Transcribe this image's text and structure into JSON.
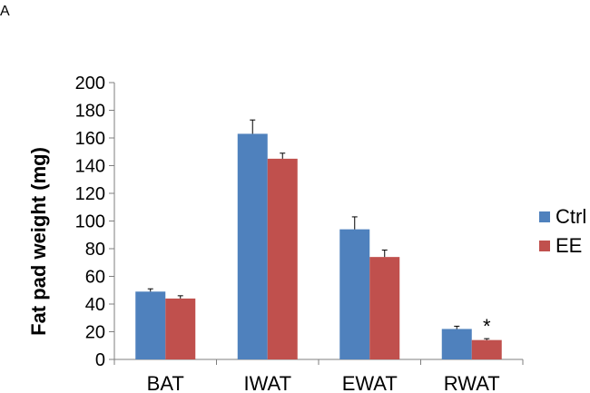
{
  "panel_label": "A",
  "chart_data": {
    "type": "bar",
    "categories": [
      "BAT",
      "IWAT",
      "EWAT",
      "RWAT"
    ],
    "series": [
      {
        "name": "Ctrl",
        "color": "#4f81bd",
        "values": [
          49,
          163,
          94,
          22
        ],
        "errors": [
          2,
          10,
          9,
          2
        ]
      },
      {
        "name": "EE",
        "color": "#c0504d",
        "values": [
          44,
          145,
          74,
          14
        ],
        "errors": [
          2,
          4,
          5,
          1
        ]
      }
    ],
    "title": "",
    "xlabel": "",
    "ylabel": "Fat pad weight (mg)",
    "ylim": [
      0,
      200
    ],
    "yticks": [
      "0",
      "20",
      "40",
      "60",
      "80",
      "100",
      "120",
      "140",
      "160",
      "180",
      "200"
    ],
    "grid": false,
    "legend": "right",
    "annotations": [
      {
        "text": "*",
        "category": "RWAT",
        "series": "EE"
      }
    ]
  }
}
